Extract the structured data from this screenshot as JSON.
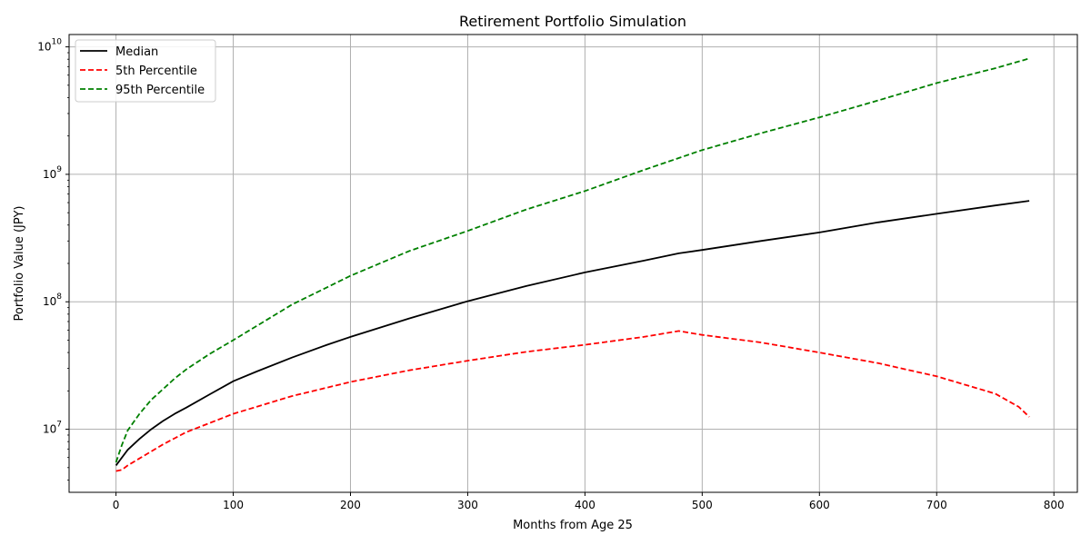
{
  "chart_data": {
    "type": "line",
    "title": "Retirement Portfolio Simulation",
    "xlabel": "Months from Age 25",
    "ylabel": "Portfolio Value (JPY)",
    "xlim": [
      -40,
      820
    ],
    "ylim": [
      3200000,
      12500000000
    ],
    "yscale": "log",
    "grid": true,
    "legend_position": "top-left",
    "x_ticks": [
      0,
      100,
      200,
      300,
      400,
      500,
      600,
      700,
      800
    ],
    "y_ticks": [
      {
        "value": 10000000,
        "label_base": "10",
        "label_exp": "7"
      },
      {
        "value": 100000000,
        "label_base": "10",
        "label_exp": "8"
      },
      {
        "value": 1000000000,
        "label_base": "10",
        "label_exp": "9"
      },
      {
        "value": 10000000000,
        "label_base": "10",
        "label_exp": "10"
      }
    ],
    "series": [
      {
        "name": "Median",
        "color": "#000000",
        "dash": "solid",
        "x": [
          0,
          10,
          20,
          30,
          40,
          50,
          60,
          80,
          100,
          120,
          150,
          180,
          200,
          250,
          300,
          350,
          400,
          450,
          480,
          500,
          550,
          600,
          650,
          700,
          750,
          779
        ],
        "y": [
          5200000,
          6900000,
          8400000,
          10000000,
          11600000,
          13200000,
          14800000,
          18800000,
          23800000,
          28400000,
          36500000,
          46000000,
          53000000,
          74000000,
          101000000,
          133000000,
          170000000,
          210000000,
          240000000,
          255000000,
          300000000,
          350000000,
          420000000,
          490000000,
          570000000,
          620000000
        ]
      },
      {
        "name": "5th Percentile",
        "color": "#ff0000",
        "dash": "dashed",
        "x": [
          0,
          5,
          10,
          20,
          30,
          40,
          50,
          60,
          80,
          100,
          150,
          200,
          250,
          300,
          350,
          400,
          450,
          480,
          500,
          550,
          600,
          650,
          700,
          750,
          770,
          779
        ],
        "y": [
          4700000,
          4800000,
          5200000,
          5900000,
          6700000,
          7600000,
          8500000,
          9500000,
          11200000,
          13200000,
          18200000,
          23500000,
          29000000,
          34500000,
          40500000,
          46000000,
          53000000,
          59000000,
          55000000,
          48000000,
          40000000,
          33000000,
          26000000,
          19000000,
          15000000,
          12500000
        ]
      },
      {
        "name": "95th Percentile",
        "color": "#008000",
        "dash": "dashed",
        "x": [
          0,
          5,
          10,
          20,
          30,
          40,
          50,
          60,
          80,
          100,
          150,
          200,
          250,
          300,
          350,
          400,
          450,
          500,
          550,
          600,
          650,
          700,
          750,
          779
        ],
        "y": [
          5500000,
          7500000,
          9800000,
          13200000,
          17000000,
          20600000,
          25000000,
          29500000,
          39000000,
          50000000,
          95000000,
          160000000,
          250000000,
          360000000,
          530000000,
          740000000,
          1080000000,
          1550000000,
          2100000000,
          2800000000,
          3800000000,
          5200000000,
          6800000000,
          8100000000
        ]
      }
    ]
  }
}
